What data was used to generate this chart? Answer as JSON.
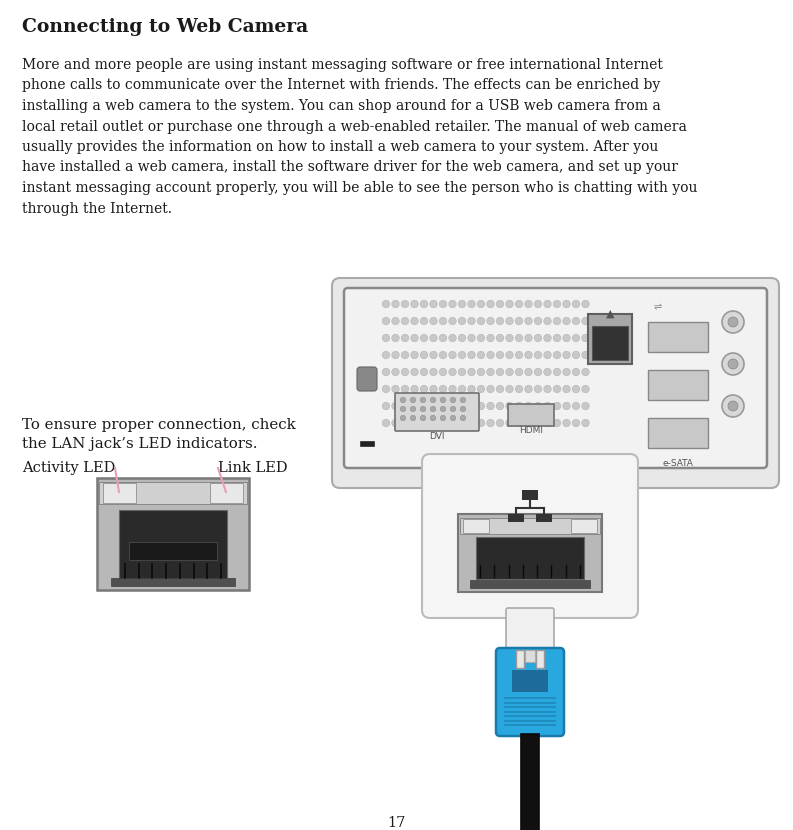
{
  "title": "Connecting to Web Camera",
  "body_text_lines": [
    "More and more people are using instant messaging software or free international Internet",
    "phone calls to communicate over the Internet with friends. The effects can be enriched by",
    "installing a web camera to the system. You can shop around for a USB web camera from a",
    "local retail outlet or purchase one through a web-enabled retailer. The manual of web camera",
    "usually provides the information on how to install a web camera to your system. After you",
    "have installed a web camera, install the software driver for the web camera, and set up your",
    "instant messaging account properly, you will be able to see the person who is chatting with you",
    "through the Internet."
  ],
  "caption_line1": "To ensure proper connection, check",
  "caption_line2": "the LAN jack’s LED indicators.",
  "activity_led_label": "Activity LED",
  "link_led_label": "Link LED",
  "page_number": "17",
  "bg_color": "#ffffff",
  "text_color": "#1a1a1a",
  "annotation_color": "#e8a0b0",
  "panel_bg": "#f2f2f2",
  "panel_edge": "#999999",
  "light_gray": "#c8c8c8",
  "medium_gray": "#888888",
  "dark_gray": "#444444",
  "very_dark": "#1a1a1a",
  "off_white": "#eeeeee",
  "blue_color": "#29a8e0",
  "dark_blue": "#1a7aaa",
  "blue_label": "#1e6a9a",
  "cable_black": "#111111",
  "callout_bg": "#f5f5f5",
  "callout_edge": "#bbbbbb",
  "jack_gray": "#b8b8b8",
  "jack_dark": "#2a2a2a"
}
